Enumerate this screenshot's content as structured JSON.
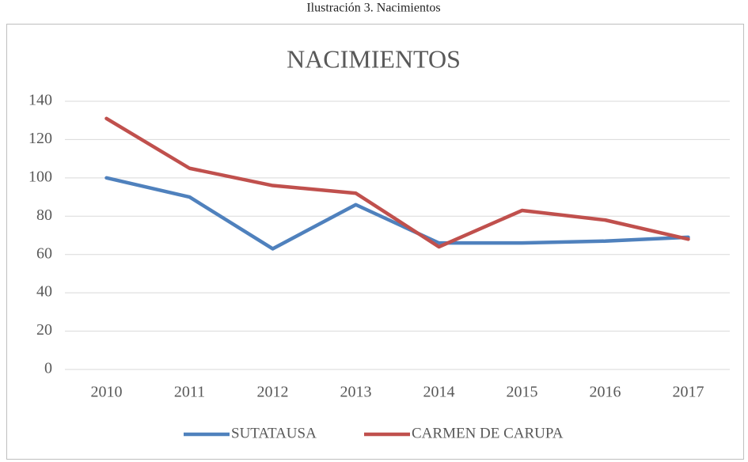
{
  "caption": "Ilustración 3.  Nacimientos",
  "chart_data": {
    "type": "line",
    "title": "NACIMIENTOS",
    "categories": [
      "2010",
      "2011",
      "2012",
      "2013",
      "2014",
      "2015",
      "2016",
      "2017"
    ],
    "series": [
      {
        "name": "SUTATAUSA",
        "color": "#4f81bd",
        "values": [
          100,
          90,
          63,
          86,
          66,
          66,
          67,
          69
        ]
      },
      {
        "name": "CARMEN DE CARUPA",
        "color": "#c0504d",
        "values": [
          131,
          105,
          96,
          92,
          64,
          83,
          78,
          68
        ]
      }
    ],
    "ylim": [
      0,
      140
    ],
    "yticks": [
      0,
      20,
      40,
      60,
      80,
      100,
      120,
      140
    ],
    "grid": true,
    "legend": "bottom"
  }
}
